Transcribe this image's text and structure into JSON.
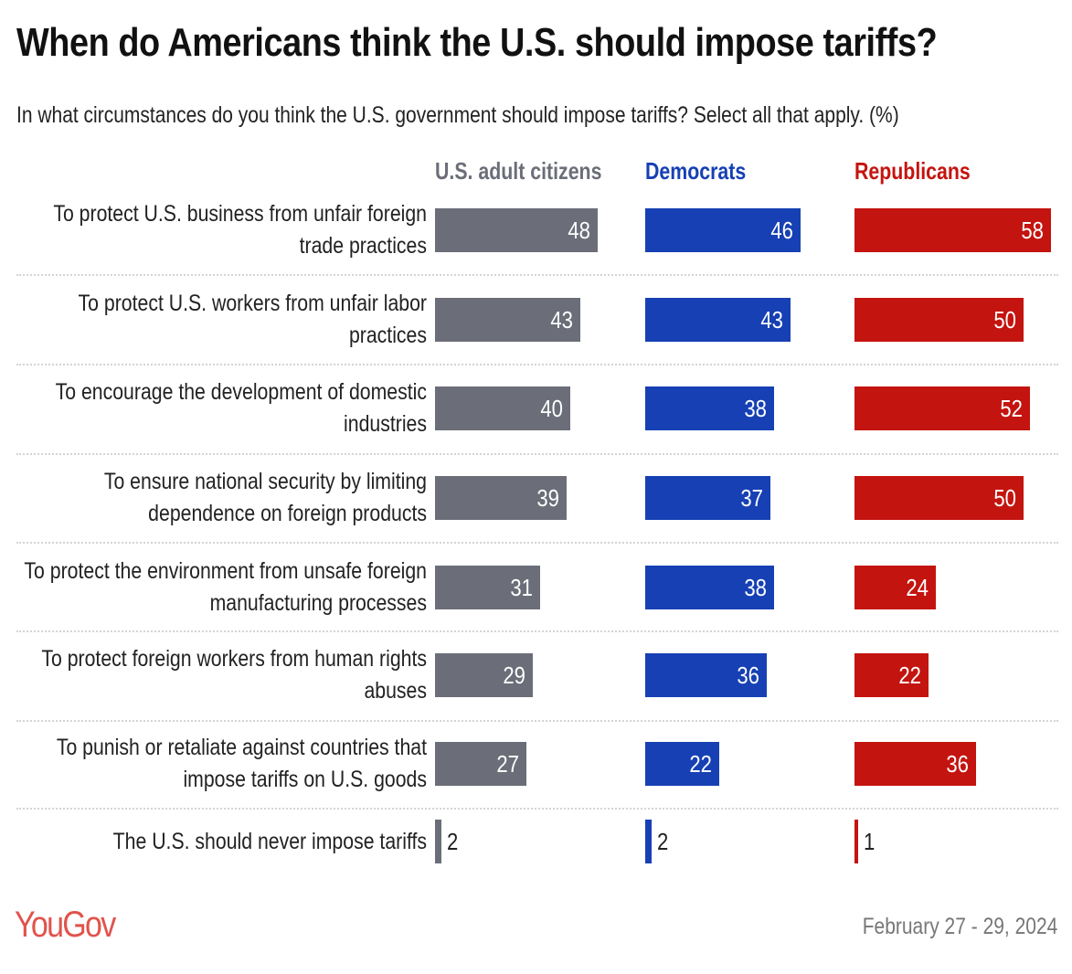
{
  "title": "When do Americans think the U.S. should impose tariffs?",
  "subtitle": "In what circumstances do you think the U.S. government should impose tariffs? Select all that apply. (%)",
  "footer": {
    "logo": "YouGov",
    "date": "February 27 - 29, 2024"
  },
  "chart_data": {
    "type": "bar",
    "orientation": "horizontal",
    "title": "When do Americans think the U.S. should impose tariffs?",
    "subtitle": "In what circumstances do you think the U.S. government should impose tariffs? Select all that apply. (%)",
    "categories": [
      "To protect U.S. business from unfair foreign trade practices",
      "To protect U.S. workers from unfair labor practices",
      "To encourage the development of domestic industries",
      "To ensure national security by limiting dependence on foreign products",
      "To protect the environment from unsafe foreign manufacturing processes",
      "To protect foreign workers from human rights abuses",
      "To punish or retaliate against countries that impose tariffs on U.S. goods",
      "The U.S. should never impose tariffs"
    ],
    "series": [
      {
        "name": "U.S. adult citizens",
        "color": "#6b6e78",
        "values": [
          48,
          43,
          40,
          39,
          31,
          29,
          27,
          2
        ]
      },
      {
        "name": "Democrats",
        "color": "#1640b4",
        "values": [
          46,
          43,
          38,
          37,
          38,
          36,
          22,
          2
        ]
      },
      {
        "name": "Republicans",
        "color": "#c4140f",
        "values": [
          58,
          50,
          52,
          50,
          24,
          22,
          36,
          1
        ]
      }
    ],
    "grid": false,
    "legend": "column headers"
  }
}
